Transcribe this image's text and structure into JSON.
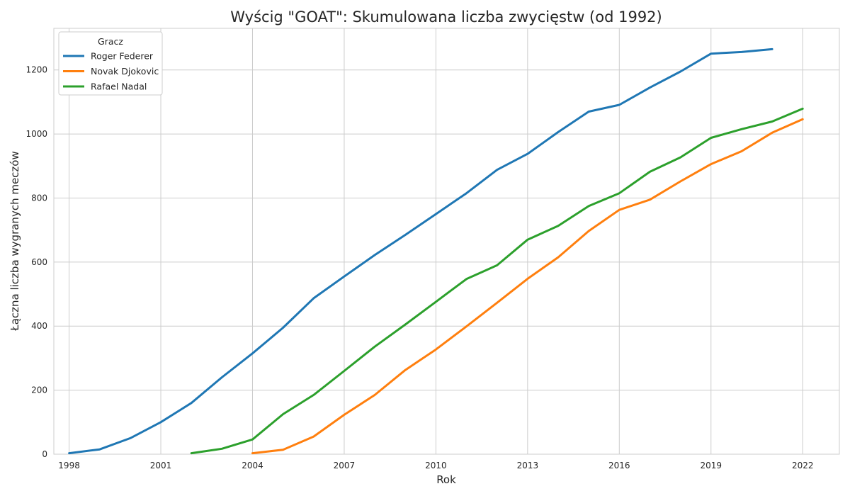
{
  "chart_data": {
    "type": "line",
    "title": "Wyścig \"GOAT\": Skumulowana liczba zwycięstw (od 1992)",
    "xlabel": "Rok",
    "ylabel": "Łączna liczba wygranych meczów",
    "xlim": [
      1997.5,
      2023.2
    ],
    "ylim": [
      0,
      1330
    ],
    "xticks": [
      1998,
      2001,
      2004,
      2007,
      2010,
      2013,
      2016,
      2019,
      2022
    ],
    "yticks": [
      0,
      200,
      400,
      600,
      800,
      1000,
      1200
    ],
    "grid": true,
    "legend": {
      "title": "Gracz",
      "position": "top-left"
    },
    "series": [
      {
        "name": "Roger Federer",
        "color": "#1f77b4",
        "x": [
          1998,
          1999,
          2000,
          2001,
          2002,
          2003,
          2004,
          2005,
          2006,
          2007,
          2008,
          2009,
          2010,
          2011,
          2012,
          2013,
          2014,
          2015,
          2016,
          2017,
          2018,
          2019,
          2020,
          2021
        ],
        "values": [
          3,
          15,
          50,
          100,
          160,
          240,
          315,
          395,
          487,
          555,
          622,
          685,
          750,
          815,
          888,
          938,
          1006,
          1070,
          1091,
          1145,
          1195,
          1251,
          1256,
          1265
        ]
      },
      {
        "name": "Novak Djokovic",
        "color": "#ff7f0e",
        "x": [
          2004,
          2005,
          2006,
          2007,
          2008,
          2009,
          2010,
          2011,
          2012,
          2013,
          2014,
          2015,
          2016,
          2017,
          2018,
          2019,
          2020,
          2021,
          2022
        ],
        "values": [
          3,
          14,
          55,
          123,
          185,
          263,
          327,
          399,
          473,
          548,
          615,
          697,
          763,
          795,
          852,
          906,
          946,
          1004,
          1046
        ]
      },
      {
        "name": "Rafael Nadal",
        "color": "#2ca02c",
        "x": [
          2002,
          2003,
          2004,
          2005,
          2006,
          2007,
          2008,
          2009,
          2010,
          2011,
          2012,
          2013,
          2014,
          2015,
          2016,
          2017,
          2018,
          2019,
          2020,
          2021,
          2022
        ],
        "values": [
          3,
          17,
          46,
          125,
          185,
          260,
          336,
          405,
          476,
          547,
          590,
          670,
          713,
          775,
          815,
          882,
          927,
          988,
          1015,
          1039,
          1079
        ]
      }
    ]
  }
}
